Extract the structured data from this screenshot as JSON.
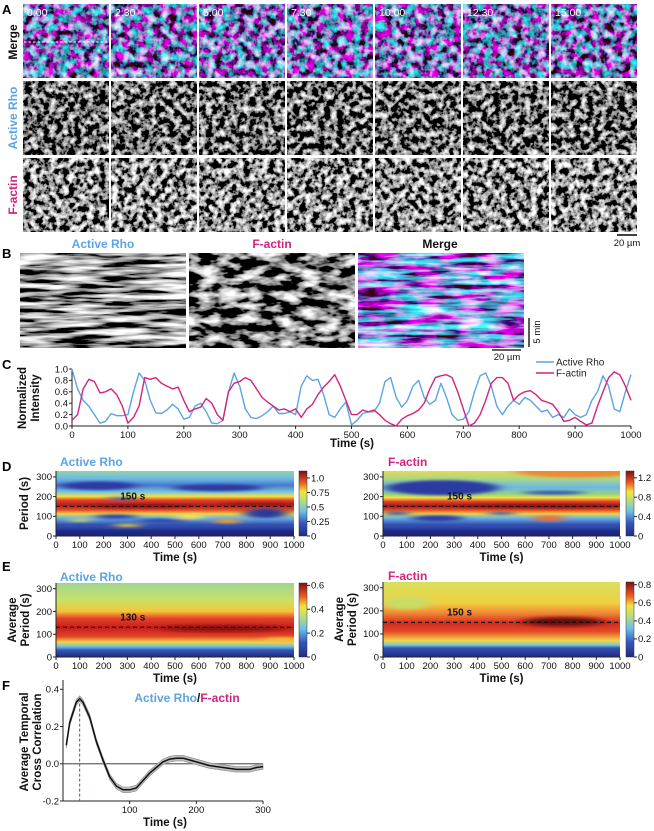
{
  "panel_labels": {
    "a": "A",
    "b": "B",
    "c": "C",
    "d": "D",
    "e": "E",
    "f": "F"
  },
  "panel_a": {
    "rows": [
      "Merge",
      "Active Rho",
      "F-actin"
    ],
    "timepoints": [
      "0:00",
      "2:30",
      "5:00",
      "7:30",
      "10:00",
      "12:30",
      "15:00"
    ],
    "scale_bar": "20 µm"
  },
  "panel_b": {
    "titles": [
      "Active Rho",
      "F-actin",
      "Merge"
    ],
    "time_scale": "5 min",
    "scale_bar": "20 µm"
  },
  "colors": {
    "active_rho": "#5ba4e6",
    "f_actin": "#d3247c"
  },
  "chart_data": [
    {
      "type": "line",
      "title": "",
      "xlabel": "Time (s)",
      "ylabel": "Normalized Intensity",
      "xlim": [
        0,
        1000
      ],
      "ylim": [
        0,
        1
      ],
      "xticks": [
        0,
        100,
        200,
        300,
        400,
        500,
        600,
        700,
        800,
        900,
        1000
      ],
      "yticks": [
        "0.0",
        "0.2",
        "0.4",
        "0.6",
        "0.8",
        "1.0"
      ],
      "legend": "top-right",
      "x_step": 10,
      "series": [
        {
          "name": "Active Rho",
          "color": "#5ba4e6",
          "values": [
            1.0,
            0.65,
            0.45,
            0.35,
            0.2,
            0.05,
            0.08,
            0.22,
            0.18,
            0.18,
            0.2,
            0.6,
            0.93,
            0.8,
            0.45,
            0.23,
            0.22,
            0.28,
            0.38,
            0.3,
            0.12,
            0.15,
            0.35,
            0.4,
            0.25,
            0.05,
            0.04,
            0.1,
            0.6,
            0.93,
            0.7,
            0.3,
            0.15,
            0.13,
            0.18,
            0.25,
            0.35,
            0.22,
            0.22,
            0.25,
            0.2,
            0.7,
            0.88,
            0.8,
            0.82,
            0.55,
            0.2,
            0.15,
            0.3,
            0.42,
            0.02,
            0.1,
            0.22,
            0.25,
            0.25,
            0.4,
            0.78,
            0.85,
            0.5,
            0.33,
            0.45,
            0.7,
            0.8,
            0.5,
            0.38,
            0.45,
            0.75,
            0.5,
            0.2,
            0.1,
            0.12,
            0.25,
            0.6,
            0.88,
            0.93,
            0.7,
            0.35,
            0.2,
            0.35,
            0.45,
            0.38,
            0.5,
            0.45,
            0.35,
            0.25,
            0.28,
            0.15,
            0.2,
            0.15,
            0.3,
            0.2,
            0.15,
            0.2,
            0.45,
            0.6,
            0.88,
            0.7,
            0.3,
            0.25,
            0.6,
            0.9
          ]
        },
        {
          "name": "F-actin",
          "color": "#d3247c",
          "values": [
            0.1,
            0.2,
            0.65,
            0.82,
            0.78,
            0.58,
            0.6,
            0.65,
            0.55,
            0.35,
            0.05,
            0.15,
            0.35,
            0.85,
            0.82,
            0.85,
            0.75,
            0.7,
            0.65,
            0.68,
            0.45,
            0.25,
            0.3,
            0.33,
            0.48,
            0.4,
            0.2,
            0.1,
            0.6,
            0.75,
            0.78,
            0.85,
            0.8,
            0.65,
            0.5,
            0.42,
            0.35,
            0.28,
            0.3,
            0.25,
            0.3,
            0.15,
            0.3,
            0.38,
            0.55,
            0.68,
            0.78,
            0.9,
            0.7,
            0.45,
            0.2,
            0.2,
            0.28,
            0.25,
            0.28,
            0.2,
            0.1,
            0.04,
            0.0,
            0.12,
            0.18,
            0.22,
            0.28,
            0.4,
            0.65,
            0.85,
            0.88,
            0.9,
            0.85,
            0.6,
            0.3,
            0.0,
            0.05,
            0.2,
            0.45,
            0.75,
            0.85,
            0.85,
            0.75,
            0.45,
            0.55,
            0.6,
            0.62,
            0.55,
            0.45,
            0.42,
            0.38,
            0.25,
            0.08,
            0.1,
            0.15,
            0.08,
            0.02,
            0.05,
            0.35,
            0.6,
            0.85,
            0.95,
            0.9,
            0.7,
            0.45
          ]
        }
      ]
    },
    {
      "type": "heatmap",
      "title": "Active Rho",
      "xlabel": "Time (s)",
      "ylabel": "Period (s)",
      "xlim": [
        0,
        1000
      ],
      "ylim": [
        0,
        330
      ],
      "xticks": [
        0,
        100,
        200,
        300,
        400,
        500,
        600,
        700,
        800,
        900,
        1000
      ],
      "yticks": [
        0,
        100,
        200,
        300
      ],
      "ridge_period": 150,
      "annotation": "150 s",
      "colorbar": {
        "range": [
          0,
          1.12
        ],
        "ticks": [
          0,
          0.25,
          0.5,
          0.75,
          1.0
        ],
        "tick_labels": [
          "0",
          "0.25",
          "0.5",
          "0.75",
          "1.0"
        ]
      }
    },
    {
      "type": "heatmap",
      "title": "F-actin",
      "xlabel": "Time (s)",
      "ylabel": "Period (s)",
      "xlim": [
        0,
        1000
      ],
      "ylim": [
        0,
        330
      ],
      "xticks": [
        0,
        100,
        200,
        300,
        400,
        500,
        600,
        700,
        800,
        900,
        1000
      ],
      "yticks": [
        0,
        100,
        200,
        300
      ],
      "ridge_period": 150,
      "annotation": "150 s",
      "colorbar": {
        "range": [
          0,
          1.34
        ],
        "ticks": [
          0,
          0.4,
          0.8,
          1.2
        ],
        "tick_labels": [
          "0",
          "0.4",
          "0.8",
          "1.2"
        ]
      }
    },
    {
      "type": "heatmap",
      "title": "Active Rho",
      "xlabel": "Time (s)",
      "ylabel": "Average Period (s)",
      "xlim": [
        0,
        1000
      ],
      "ylim": [
        0,
        325
      ],
      "xticks": [
        0,
        100,
        200,
        300,
        400,
        500,
        600,
        700,
        800,
        900,
        1000
      ],
      "yticks": [
        0,
        100,
        200,
        300
      ],
      "ridge_period": 130,
      "annotation": "130 s",
      "colorbar": {
        "range": [
          0,
          0.62
        ],
        "ticks": [
          0,
          0.2,
          0.4,
          0.6
        ],
        "tick_labels": [
          "0",
          "0.2",
          "0.4",
          "0.6"
        ]
      }
    },
    {
      "type": "heatmap",
      "title": "F-actin",
      "xlabel": "Time (s)",
      "ylabel": "Average Period (s)",
      "xlim": [
        0,
        1000
      ],
      "ylim": [
        0,
        325
      ],
      "xticks": [
        0,
        100,
        200,
        300,
        400,
        500,
        600,
        700,
        800,
        900,
        1000
      ],
      "yticks": [
        0,
        100,
        200,
        300
      ],
      "ridge_period": 150,
      "annotation": "150 s",
      "colorbar": {
        "range": [
          0,
          0.83
        ],
        "ticks": [
          0,
          0.2,
          0.4,
          0.6,
          0.8
        ],
        "tick_labels": [
          "0",
          "0.2",
          "0.4",
          "0.6",
          "0.8"
        ]
      }
    },
    {
      "type": "line",
      "title_parts": [
        "Active Rho",
        "/",
        "F-actin"
      ],
      "xlabel": "Time (s)",
      "ylabel": "Average Temporal Cross Correlation",
      "xlim": [
        0,
        300
      ],
      "ylim": [
        -0.2,
        0.45
      ],
      "xticks": [
        100,
        200,
        300
      ],
      "yticks": [
        "-0.2",
        "0.0",
        "0.2",
        "0.4"
      ],
      "peak_lag": 25,
      "sem": 0.015,
      "x": [
        5,
        10,
        20,
        25,
        30,
        40,
        50,
        60,
        70,
        80,
        90,
        100,
        110,
        120,
        130,
        140,
        150,
        160,
        170,
        180,
        190,
        200,
        220,
        240,
        260,
        280,
        290,
        300
      ],
      "y": [
        0.1,
        0.22,
        0.33,
        0.35,
        0.33,
        0.25,
        0.12,
        0.02,
        -0.07,
        -0.12,
        -0.14,
        -0.14,
        -0.13,
        -0.09,
        -0.05,
        -0.02,
        0.01,
        0.025,
        0.03,
        0.03,
        0.02,
        0.01,
        -0.01,
        -0.02,
        -0.03,
        -0.03,
        -0.02,
        -0.015
      ]
    }
  ]
}
